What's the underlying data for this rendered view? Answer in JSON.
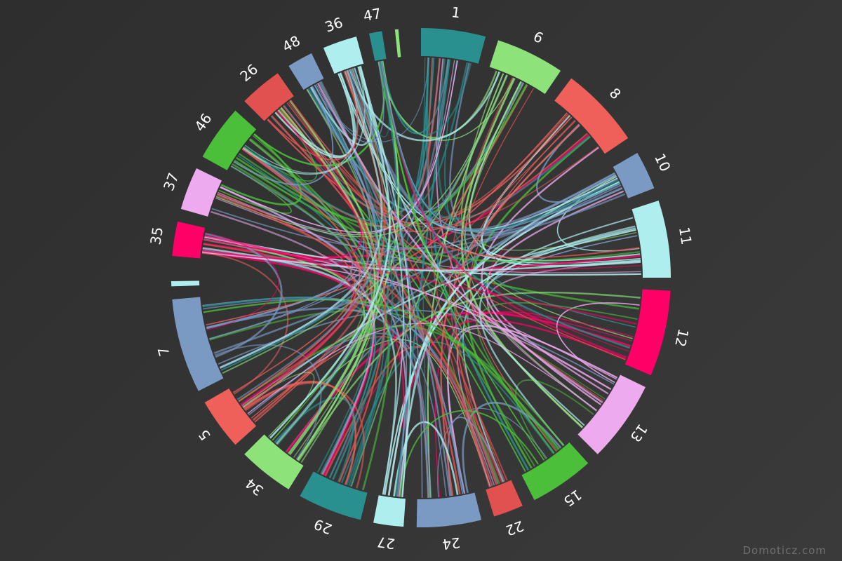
{
  "chart_data": {
    "type": "chord",
    "title": "",
    "segments": [
      {
        "label": "1",
        "color": "#2a8f8f",
        "start_deg": 0,
        "end_deg": 15
      },
      {
        "label": "6",
        "color": "#8de27a",
        "start_deg": 18,
        "end_deg": 34
      },
      {
        "label": "8",
        "color": "#f0605b",
        "start_deg": 37,
        "end_deg": 56
      },
      {
        "label": "10",
        "color": "#7a9ac4",
        "start_deg": 60,
        "end_deg": 69
      },
      {
        "label": "11",
        "color": "#aeeeee",
        "start_deg": 72,
        "end_deg": 90
      },
      {
        "label": "12",
        "color": "#ff0066",
        "start_deg": 93,
        "end_deg": 113
      },
      {
        "label": "13",
        "color": "#eeaaee",
        "start_deg": 116,
        "end_deg": 135
      },
      {
        "label": "15",
        "color": "#4bbf3a",
        "start_deg": 138,
        "end_deg": 153
      },
      {
        "label": "22",
        "color": "#e0514f",
        "start_deg": 156,
        "end_deg": 163
      },
      {
        "label": "24",
        "color": "#7a9ac4",
        "start_deg": 166,
        "end_deg": 181
      },
      {
        "label": "27",
        "color": "#aeeeee",
        "start_deg": 184,
        "end_deg": 191
      },
      {
        "label": "29",
        "color": "#2a8f8f",
        "start_deg": 194,
        "end_deg": 209
      },
      {
        "label": "34",
        "color": "#8de27a",
        "start_deg": 212,
        "end_deg": 225
      },
      {
        "label": "5",
        "color": "#f0605b",
        "start_deg": 228,
        "end_deg": 240
      },
      {
        "label": "7",
        "color": "#7a9ac4",
        "start_deg": 243,
        "end_deg": 265
      },
      {
        "label": "",
        "color": "#aeeeee",
        "start_deg": 268,
        "end_deg": 269.2
      },
      {
        "label": "35",
        "color": "#ff0066",
        "start_deg": 275,
        "end_deg": 283
      },
      {
        "label": "37",
        "color": "#eeaaee",
        "start_deg": 286,
        "end_deg": 296
      },
      {
        "label": "46",
        "color": "#4bbf3a",
        "start_deg": 299,
        "end_deg": 312
      },
      {
        "label": "26",
        "color": "#e0514f",
        "start_deg": 315,
        "end_deg": 325
      },
      {
        "label": "48",
        "color": "#7a9ac4",
        "start_deg": 328,
        "end_deg": 334
      },
      {
        "label": "36",
        "color": "#aeeeee",
        "start_deg": 337,
        "end_deg": 345
      },
      {
        "label": "47",
        "color": "#2a8f8f",
        "start_deg": 348,
        "end_deg": 351
      },
      {
        "label": "",
        "color": "#8de27a",
        "start_deg": 354,
        "end_deg": 354.8
      }
    ],
    "chords_per_segment": 9
  },
  "watermark": "Domoticz.com"
}
